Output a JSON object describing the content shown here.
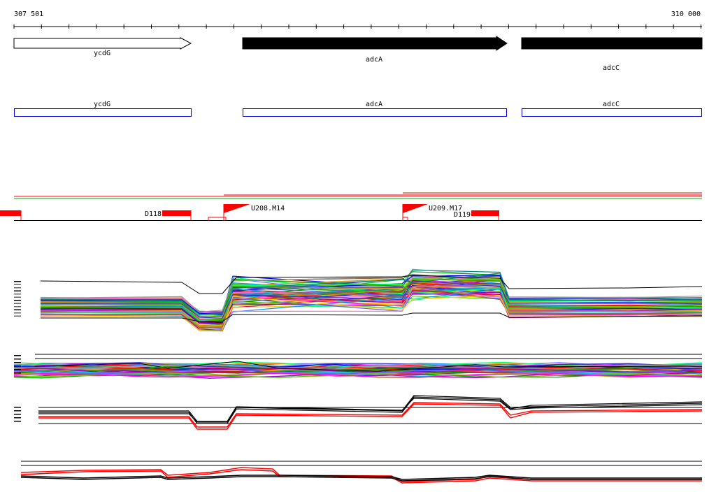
{
  "ruler": {
    "start_label": "307 501",
    "end_label": "310 000"
  },
  "genes": [
    {
      "name": "ycdG",
      "strand": "forward",
      "fill": "white"
    },
    {
      "name": "adcA",
      "strand": "forward",
      "fill": "black"
    },
    {
      "name": "adcC",
      "strand": "forward",
      "fill": "black"
    }
  ],
  "cds_boxes": [
    {
      "name": "ycdG"
    },
    {
      "name": "adcA"
    },
    {
      "name": "adcC"
    }
  ],
  "features": {
    "markers": [
      {
        "label": "D118"
      },
      {
        "label": "D119"
      }
    ],
    "flags": [
      {
        "label": "U208.M14"
      },
      {
        "label": "U209.M17"
      }
    ]
  },
  "colors": {
    "feature_red": "#ff0000",
    "cds_blue": "#0000cc",
    "track_green": "#00aa00",
    "line_black": "#000000"
  }
}
